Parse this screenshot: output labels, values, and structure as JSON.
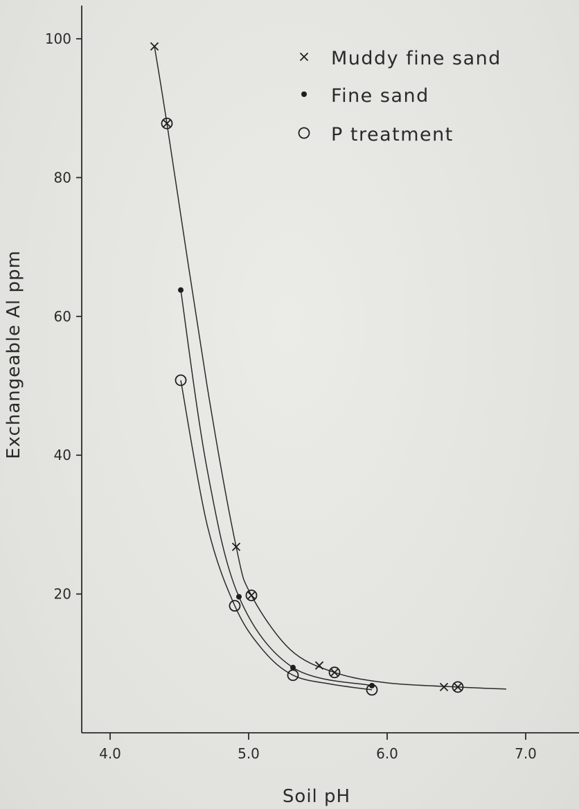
{
  "chart_data": {
    "type": "scatter",
    "xlabel": "Soil pH",
    "ylabel": "Exchangeable Al ppm",
    "xlim": [
      3.8,
      7.35
    ],
    "ylim": [
      0,
      105
    ],
    "x_ticks": [
      4.0,
      5.0,
      6.0,
      7.0
    ],
    "x_tick_labels": [
      "4.0",
      "5.0",
      "6.0",
      "7.0"
    ],
    "y_ticks": [
      20,
      40,
      60,
      80,
      100
    ],
    "y_tick_labels": [
      "20",
      "40",
      "60",
      "80",
      "100"
    ],
    "legend_position": "top-right",
    "legend": [
      {
        "marker": "x",
        "label": "Muddy fine sand"
      },
      {
        "marker": "dot",
        "label": "Fine sand"
      },
      {
        "marker": "circle",
        "label": "P treatment"
      }
    ],
    "series": [
      {
        "name": "Muddy fine sand",
        "marker": "x",
        "points": [
          [
            4.32,
            98.9
          ],
          [
            4.41,
            87.8
          ],
          [
            4.91,
            26.8
          ],
          [
            5.02,
            19.8
          ],
          [
            5.51,
            9.7
          ],
          [
            5.62,
            8.7
          ],
          [
            6.41,
            6.6
          ],
          [
            6.51,
            6.6
          ]
        ]
      },
      {
        "name": "Fine sand",
        "marker": "dot",
        "points": [
          [
            4.51,
            63.8
          ],
          [
            4.93,
            19.6
          ],
          [
            5.32,
            9.4
          ],
          [
            5.89,
            6.8
          ]
        ]
      },
      {
        "name": "P treatment",
        "marker": "circle",
        "points": [
          [
            4.41,
            87.8
          ],
          [
            4.51,
            50.8
          ],
          [
            4.9,
            18.3
          ],
          [
            5.02,
            19.8
          ],
          [
            5.32,
            8.3
          ],
          [
            5.62,
            8.7
          ],
          [
            5.89,
            6.2
          ],
          [
            6.51,
            6.6
          ]
        ]
      }
    ],
    "curves": [
      [
        [
          4.32,
          98.9
        ],
        [
          4.41,
          87.8
        ],
        [
          4.7,
          50.0
        ],
        [
          4.91,
          26.8
        ],
        [
          5.02,
          19.8
        ],
        [
          5.3,
          12.0
        ],
        [
          5.62,
          8.7
        ],
        [
          6.0,
          7.2
        ],
        [
          6.51,
          6.6
        ],
        [
          6.86,
          6.3
        ]
      ],
      [
        [
          4.51,
          63.8
        ],
        [
          4.7,
          38.0
        ],
        [
          4.93,
          19.6
        ],
        [
          5.32,
          9.4
        ],
        [
          5.89,
          6.8
        ]
      ],
      [
        [
          4.51,
          50.8
        ],
        [
          4.7,
          30.0
        ],
        [
          4.9,
          18.3
        ],
        [
          5.1,
          12.0
        ],
        [
          5.32,
          8.3
        ],
        [
          5.6,
          7.0
        ],
        [
          5.89,
          6.2
        ]
      ]
    ]
  }
}
